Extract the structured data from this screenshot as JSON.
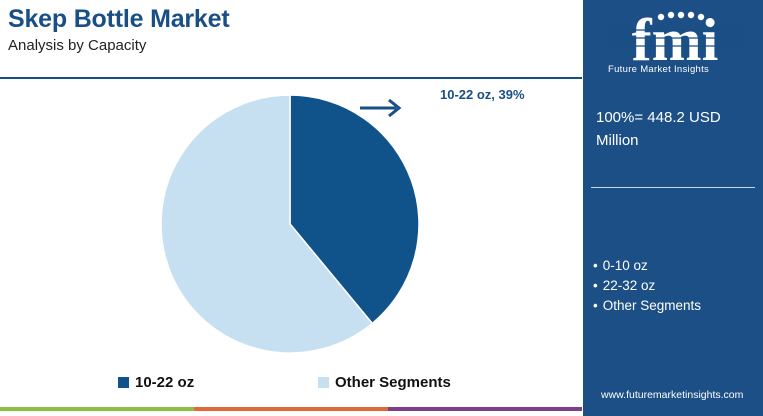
{
  "header": {
    "title": "Skep Bottle Market",
    "subtitle": "Analysis by Capacity"
  },
  "chart_data": {
    "type": "pie",
    "title": "Skep Bottle Market",
    "subtitle": "Analysis by Capacity",
    "slices": [
      {
        "name": "10-22 oz",
        "value": 39,
        "color": "#10538a",
        "label": "10-22 oz, 39%"
      },
      {
        "name": "Other Segments",
        "value": 61,
        "color": "#c6e0f2"
      }
    ],
    "legend_position": "bottom"
  },
  "legend": {
    "items": [
      {
        "label": "10-22 oz",
        "color": "#10538a"
      },
      {
        "label": "Other Segments",
        "color": "#c6e0f2"
      }
    ]
  },
  "side_panel": {
    "brand": "fmi",
    "brand_full": "Future Market Insights",
    "total": "100%= 448.2 USD Million",
    "segments": [
      "0-10 oz",
      "22-32 oz",
      "Other Segments"
    ],
    "website": "www.futuremarketinsights.com",
    "background_color": "#1b4f86"
  },
  "footer_bar": {
    "colors": [
      "#8dbf45",
      "#e2683c",
      "#7b3f8f"
    ]
  }
}
